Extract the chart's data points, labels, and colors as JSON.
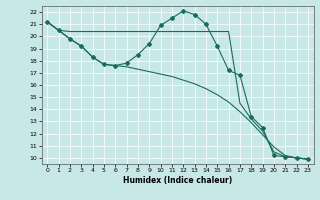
{
  "xlabel": "Humidex (Indice chaleur)",
  "bg_color": "#c8e8e8",
  "grid_color": "#b0cece",
  "line_color": "#1a6b5a",
  "xlim": [
    -0.5,
    23.5
  ],
  "ylim": [
    9.5,
    22.5
  ],
  "xticks": [
    0,
    1,
    2,
    3,
    4,
    5,
    6,
    7,
    8,
    9,
    10,
    11,
    12,
    13,
    14,
    15,
    16,
    17,
    18,
    19,
    20,
    21,
    22,
    23
  ],
  "yticks": [
    10,
    11,
    12,
    13,
    14,
    15,
    16,
    17,
    18,
    19,
    20,
    21,
    22
  ],
  "line1_x": [
    0,
    1,
    2,
    3,
    4,
    5,
    6,
    7,
    8,
    9,
    10,
    11,
    12,
    13,
    14,
    15,
    16,
    17,
    18,
    19,
    20,
    21,
    22,
    23
  ],
  "line1_y": [
    21.2,
    20.5,
    19.8,
    19.2,
    18.3,
    17.7,
    17.6,
    17.8,
    18.5,
    19.4,
    20.9,
    21.5,
    22.1,
    21.8,
    21.0,
    19.2,
    17.2,
    16.8,
    13.4,
    12.5,
    10.2,
    10.1,
    10.0,
    9.9
  ],
  "line2_x": [
    0,
    1,
    2,
    3,
    4,
    5,
    6,
    7,
    8,
    9,
    10,
    11,
    12,
    13,
    14,
    15,
    16,
    17,
    18,
    19,
    20,
    21,
    22,
    23
  ],
  "line2_y": [
    21.2,
    20.5,
    19.8,
    19.2,
    18.3,
    17.7,
    17.6,
    17.5,
    17.3,
    17.1,
    16.9,
    16.7,
    16.4,
    16.1,
    15.7,
    15.2,
    14.6,
    13.8,
    12.9,
    11.9,
    10.9,
    10.2,
    10.0,
    9.9
  ],
  "line3_x": [
    0,
    1,
    2,
    3,
    4,
    5,
    6,
    7,
    8,
    9,
    10,
    11,
    12,
    13,
    14,
    15,
    16,
    17,
    18,
    19,
    20,
    21,
    22,
    23
  ],
  "line3_y": [
    21.2,
    20.5,
    20.4,
    20.4,
    20.4,
    20.4,
    20.4,
    20.4,
    20.4,
    20.4,
    20.4,
    20.4,
    20.4,
    20.4,
    20.4,
    20.4,
    20.4,
    14.5,
    13.2,
    12.2,
    10.5,
    10.1,
    10.0,
    9.9
  ],
  "marker": "D",
  "markersize": 2.0,
  "linewidth": 0.8
}
